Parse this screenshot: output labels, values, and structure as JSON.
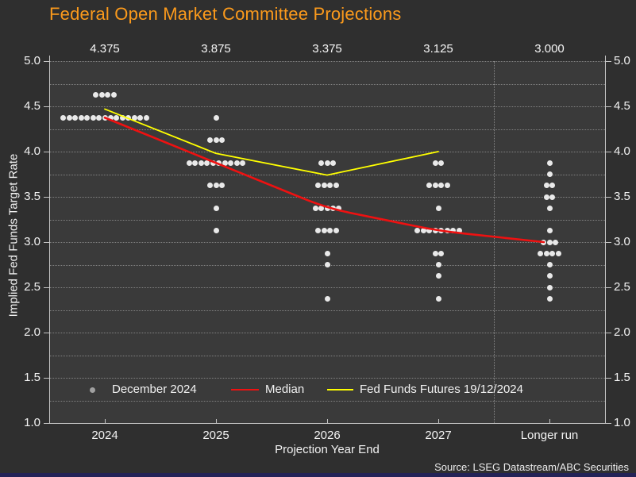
{
  "title": "Federal Open Market Committee Projections",
  "source": "Source: LSEG Datastream/ABC Securities",
  "colors": {
    "title": "#fb9a1c",
    "dot": "#e9e9e9",
    "legend_dot": "#a0a0a0",
    "median": "#ee1111",
    "futures": "#ffff00",
    "background": "#2f2f2f",
    "plot_background": "#3a3a3a",
    "bottom_bar": "#232357",
    "text": "#f2f2f2"
  },
  "chart_data": {
    "type": "scatter",
    "title": "Federal Open Market Committee Projections",
    "xlabel": "Projection Year End",
    "ylabel": "Implied Fed Funds Target Rate",
    "ylim": [
      1.0,
      5.0
    ],
    "yticks": [
      "5.0",
      "4.5",
      "4.0",
      "3.5",
      "3.0",
      "2.5",
      "2.0",
      "1.5",
      "1.0"
    ],
    "grid": "dotted horizontal lines every 0.25, dotted vertical separator before Longer run",
    "legend_position": "inside bottom",
    "categories": [
      "2024",
      "2025",
      "2026",
      "2027",
      "Longer run"
    ],
    "top_axis_median_labels": [
      "4.375",
      "3.875",
      "3.375",
      "3.125",
      "3.000"
    ],
    "dot_series_name": "December 2024",
    "dots_value_count_per_category": [
      [
        [
          4.625,
          4
        ],
        [
          4.375,
          15
        ]
      ],
      [
        [
          4.375,
          1
        ],
        [
          4.125,
          3
        ],
        [
          3.875,
          10
        ],
        [
          3.625,
          3
        ],
        [
          3.375,
          1
        ],
        [
          3.125,
          1
        ]
      ],
      [
        [
          3.875,
          3
        ],
        [
          3.625,
          4
        ],
        [
          3.375,
          5
        ],
        [
          3.125,
          4
        ],
        [
          2.875,
          1
        ],
        [
          2.75,
          1
        ],
        [
          2.375,
          1
        ]
      ],
      [
        [
          3.875,
          2
        ],
        [
          3.625,
          4
        ],
        [
          3.375,
          1
        ],
        [
          3.125,
          8
        ],
        [
          2.875,
          2
        ],
        [
          2.75,
          1
        ],
        [
          2.625,
          1
        ],
        [
          2.375,
          1
        ]
      ],
      [
        [
          3.875,
          1
        ],
        [
          3.75,
          1
        ],
        [
          3.625,
          2
        ],
        [
          3.5,
          2
        ],
        [
          3.375,
          1
        ],
        [
          3.125,
          1
        ],
        [
          3.0,
          3
        ],
        [
          2.875,
          4
        ],
        [
          2.75,
          1
        ],
        [
          2.625,
          1
        ],
        [
          2.5,
          1
        ],
        [
          2.375,
          1
        ]
      ]
    ],
    "series": [
      {
        "name": "Median",
        "type": "line",
        "color": "#ee1111",
        "x": [
          "2024",
          "2025",
          "2026",
          "2027",
          "Longer run"
        ],
        "values": [
          4.375,
          3.875,
          3.375,
          3.125,
          3.0
        ]
      },
      {
        "name": "Fed Funds Futures 19/12/2024",
        "type": "line",
        "color": "#ffff00",
        "x": [
          "2024",
          "2025",
          "2026",
          "2027"
        ],
        "values": [
          4.47,
          3.98,
          3.74,
          4.0
        ]
      }
    ],
    "separator_between": [
      "2027",
      "Longer run"
    ]
  },
  "legend": {
    "dot_label": "December 2024",
    "median_label": "Median",
    "futures_label": "Fed Funds Futures 19/12/2024"
  }
}
